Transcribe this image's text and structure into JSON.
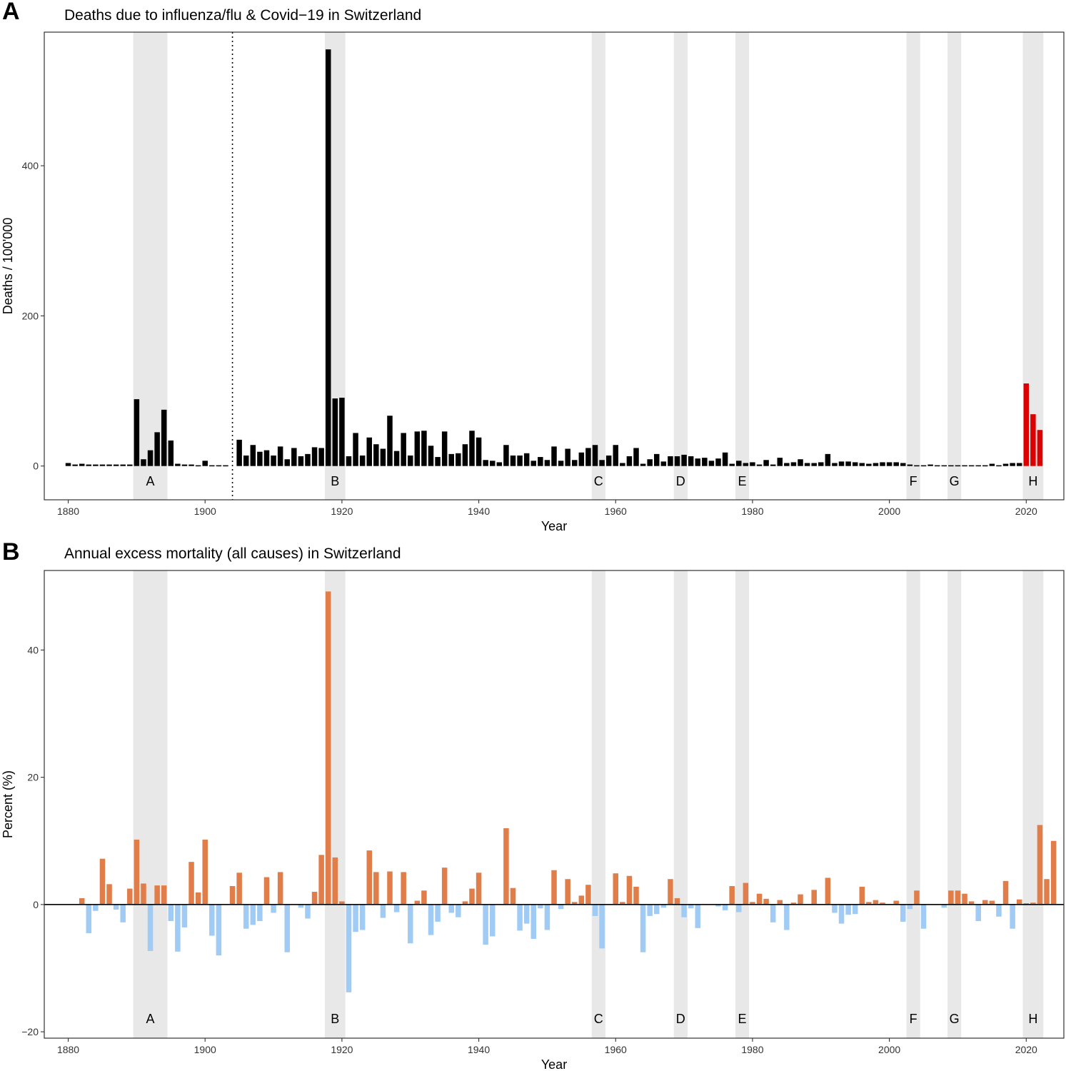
{
  "chart_data": [
    {
      "panel": "A",
      "type": "bar",
      "title": "Deaths due to influenza/flu & Covid−19  in Switzerland",
      "xlabel": "Year",
      "ylabel": "Deaths / 100'000",
      "xlim": [
        1876.5,
        2025.5
      ],
      "ylim": [
        -45,
        578
      ],
      "xticks": [
        1880,
        1900,
        1920,
        1940,
        1960,
        1980,
        2000,
        2020
      ],
      "yticks": [
        0,
        200,
        400
      ],
      "reference_line": {
        "type": "vertical",
        "style": "dotted",
        "x": 1904
      },
      "colors": {
        "flu": "#000000",
        "covid": "#dd0000",
        "band": "#e8e8e8"
      },
      "bands": [
        {
          "label": "A",
          "x0": 1889.5,
          "x1": 1894.5
        },
        {
          "label": "B",
          "x0": 1917.5,
          "x1": 1920.5
        },
        {
          "label": "C",
          "x0": 1956.5,
          "x1": 1958.5
        },
        {
          "label": "D",
          "x0": 1968.5,
          "x1": 1970.5
        },
        {
          "label": "E",
          "x0": 1977.5,
          "x1": 1979.5
        },
        {
          "label": "F",
          "x0": 2002.5,
          "x1": 2004.5
        },
        {
          "label": "G",
          "x0": 2008.5,
          "x1": 2010.5
        },
        {
          "label": "H",
          "x0": 2019.5,
          "x1": 2022.5
        }
      ],
      "series": [
        {
          "name": "Influenza/flu",
          "x": [
            1880,
            1881,
            1882,
            1883,
            1884,
            1885,
            1886,
            1887,
            1888,
            1889,
            1890,
            1891,
            1892,
            1893,
            1894,
            1895,
            1896,
            1897,
            1898,
            1899,
            1900,
            1901,
            1902,
            1903,
            1905,
            1906,
            1907,
            1908,
            1909,
            1910,
            1911,
            1912,
            1913,
            1914,
            1915,
            1916,
            1917,
            1918,
            1919,
            1920,
            1921,
            1922,
            1923,
            1924,
            1925,
            1926,
            1927,
            1928,
            1929,
            1930,
            1931,
            1932,
            1933,
            1934,
            1935,
            1936,
            1937,
            1938,
            1939,
            1940,
            1941,
            1942,
            1943,
            1944,
            1945,
            1946,
            1947,
            1948,
            1949,
            1950,
            1951,
            1952,
            1953,
            1954,
            1955,
            1956,
            1957,
            1958,
            1959,
            1960,
            1961,
            1962,
            1963,
            1964,
            1965,
            1966,
            1967,
            1968,
            1969,
            1970,
            1971,
            1972,
            1973,
            1974,
            1975,
            1976,
            1977,
            1978,
            1979,
            1980,
            1981,
            1982,
            1983,
            1984,
            1985,
            1986,
            1987,
            1988,
            1989,
            1990,
            1991,
            1992,
            1993,
            1994,
            1995,
            1996,
            1997,
            1998,
            1999,
            2000,
            2001,
            2002,
            2003,
            2004,
            2005,
            2006,
            2007,
            2008,
            2009,
            2010,
            2011,
            2012,
            2013,
            2014,
            2015,
            2016,
            2017,
            2018,
            2019
          ],
          "values": [
            4,
            2,
            3,
            2,
            2,
            2,
            2,
            2,
            2,
            2,
            89,
            9,
            21,
            45,
            75,
            34,
            3,
            2,
            2,
            1,
            7,
            1,
            1,
            1,
            35,
            14,
            28,
            19,
            21,
            14,
            26,
            9,
            24,
            13,
            16,
            25,
            24,
            555,
            90,
            91,
            13,
            44,
            14,
            38,
            29,
            23,
            67,
            20,
            44,
            14,
            46,
            47,
            27,
            12,
            46,
            16,
            17,
            29,
            47,
            38,
            8,
            7,
            5,
            28,
            14,
            14,
            17,
            7,
            12,
            8,
            26,
            7,
            23,
            8,
            18,
            24,
            28,
            8,
            14,
            28,
            4,
            13,
            24,
            3,
            9,
            16,
            6,
            13,
            13,
            15,
            13,
            10,
            11,
            7,
            10,
            18,
            3,
            7,
            4,
            5,
            2,
            8,
            2,
            11,
            4,
            5,
            9,
            4,
            4,
            5,
            16,
            4,
            6,
            6,
            5,
            4,
            3,
            4,
            5,
            5,
            5,
            4,
            2,
            1,
            1,
            2,
            1,
            1,
            1,
            1,
            1,
            1,
            1,
            1,
            3,
            1,
            3,
            4,
            4
          ]
        },
        {
          "name": "Covid-19",
          "x": [
            2020,
            2021,
            2022
          ],
          "values": [
            110,
            69,
            48
          ]
        }
      ]
    },
    {
      "panel": "B",
      "type": "bar",
      "title": "Annual excess mortality (all causes) in Switzerland",
      "xlabel": "Year",
      "ylabel": "Percent (%)",
      "xlim": [
        1876.5,
        2025.5
      ],
      "ylim": [
        -21,
        52.5
      ],
      "xticks": [
        1880,
        1900,
        1920,
        1940,
        1960,
        1980,
        2000,
        2020
      ],
      "yticks": [
        -20,
        0,
        20,
        40
      ],
      "reference_line": {
        "type": "horizontal",
        "style": "solid",
        "y": 0
      },
      "colors": {
        "positive": "#e07d48",
        "negative": "#9fcbf5",
        "band": "#e8e8e8"
      },
      "bands": [
        {
          "label": "A",
          "x0": 1889.5,
          "x1": 1894.5
        },
        {
          "label": "B",
          "x0": 1917.5,
          "x1": 1920.5
        },
        {
          "label": "C",
          "x0": 1956.5,
          "x1": 1958.5
        },
        {
          "label": "D",
          "x0": 1968.5,
          "x1": 1970.5
        },
        {
          "label": "E",
          "x0": 1977.5,
          "x1": 1979.5
        },
        {
          "label": "F",
          "x0": 2002.5,
          "x1": 2004.5
        },
        {
          "label": "G",
          "x0": 2008.5,
          "x1": 2010.5
        },
        {
          "label": "H",
          "x0": 2019.5,
          "x1": 2022.5
        }
      ],
      "x_start": 1882,
      "values": [
        1.0,
        -4.5,
        -1.0,
        7.2,
        3.2,
        -0.8,
        -2.8,
        2.5,
        10.2,
        3.3,
        -7.3,
        3.0,
        3.0,
        -2.6,
        -7.4,
        -3.6,
        6.7,
        1.9,
        10.2,
        -4.9,
        -8.0,
        0,
        2.9,
        5.0,
        -3.8,
        -3.2,
        -2.6,
        4.3,
        -1.3,
        5.1,
        -7.5,
        0,
        -0.5,
        -2.2,
        2.0,
        7.8,
        49.2,
        7.4,
        0.5,
        -13.8,
        -4.3,
        -4.0,
        8.5,
        5.1,
        -2.1,
        5.2,
        -1.2,
        5.1,
        -6.1,
        0.6,
        2.2,
        -4.8,
        -2.7,
        5.8,
        -1.3,
        -2.0,
        0.5,
        2.5,
        5.0,
        -6.3,
        -5.0,
        0,
        12.0,
        2.6,
        -4.1,
        -3.0,
        -5.4,
        -0.6,
        -4.0,
        5.4,
        -0.7,
        4.0,
        0.4,
        1.4,
        3.1,
        -1.8,
        -6.9,
        0,
        4.9,
        0.4,
        4.5,
        2.8,
        -7.5,
        -1.8,
        -1.5,
        -0.5,
        4.0,
        1.0,
        -2.0,
        -0.6,
        -3.7,
        0,
        0,
        -0.3,
        -0.9,
        2.9,
        -1.2,
        3.4,
        0.4,
        1.7,
        0.9,
        -2.8,
        0.7,
        -4.0,
        0.3,
        1.6,
        0,
        2.3,
        0,
        4.2,
        -1.3,
        -3.0,
        -1.6,
        -1.5,
        2.8,
        0.4,
        0.7,
        0.3,
        0,
        0.6,
        -2.7,
        -0.7,
        2.2,
        -3.8,
        0,
        0,
        -0.5,
        2.2,
        2.2,
        1.7,
        0.5,
        -2.6,
        0.7,
        0.6,
        -1.9,
        3.7,
        -3.8,
        0.8,
        0.2,
        0.3,
        12.5,
        4.0,
        10.0
      ]
    }
  ]
}
